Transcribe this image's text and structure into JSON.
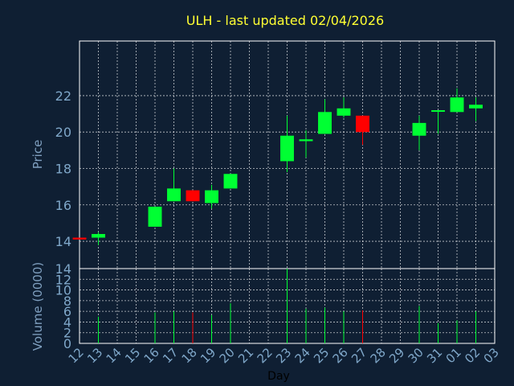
{
  "chart_data": {
    "type": "candlestick",
    "title": "ULH - last updated 02/04/2026",
    "xlabel": "Day",
    "price_panel": {
      "ylabel": "Price",
      "ylim": [
        12.5,
        25
      ],
      "yticks": [
        14,
        16,
        18,
        20,
        22
      ]
    },
    "volume_panel": {
      "ylabel": "Volume (0000)",
      "ylim": [
        0,
        14
      ],
      "yticks": [
        0,
        2,
        4,
        6,
        8,
        10,
        12,
        14
      ]
    },
    "x_ticks": [
      "12",
      "13",
      "14",
      "15",
      "16",
      "17",
      "18",
      "19",
      "20",
      "21",
      "22",
      "23",
      "24",
      "25",
      "26",
      "27",
      "28",
      "29",
      "30",
      "31",
      "01",
      "02",
      "03"
    ],
    "grid": true,
    "colors": {
      "background": "#0f1f33",
      "title": "#ffff33",
      "axis_label": "#7f9fbf",
      "tick_label": "#7fa7c9",
      "grid": "#ffffff",
      "up": "#00ff33",
      "down": "#ff0000"
    },
    "candles": [
      {
        "day": "12",
        "open": 14.2,
        "high": 14.2,
        "low": 14.1,
        "close": 14.1,
        "volume": 0
      },
      {
        "day": "13",
        "open": 14.2,
        "high": 14.5,
        "low": 13.8,
        "close": 14.4,
        "volume": 5.0
      },
      {
        "day": "16",
        "open": 14.8,
        "high": 15.9,
        "low": 14.8,
        "close": 15.9,
        "volume": 5.8
      },
      {
        "day": "17",
        "open": 16.2,
        "high": 18.0,
        "low": 16.2,
        "close": 16.9,
        "volume": 6.0
      },
      {
        "day": "18",
        "open": 16.8,
        "high": 16.8,
        "low": 16.2,
        "close": 16.2,
        "volume": 5.8
      },
      {
        "day": "19",
        "open": 16.1,
        "high": 17.1,
        "low": 15.8,
        "close": 16.8,
        "volume": 5.3
      },
      {
        "day": "20",
        "open": 16.9,
        "high": 17.7,
        "low": 16.9,
        "close": 17.7,
        "volume": 7.5
      },
      {
        "day": "23",
        "open": 18.4,
        "high": 20.9,
        "low": 17.8,
        "close": 19.8,
        "volume": 14.0
      },
      {
        "day": "24",
        "open": 19.5,
        "high": 20.1,
        "low": 18.6,
        "close": 19.6,
        "volume": 6.5
      },
      {
        "day": "25",
        "open": 19.9,
        "high": 21.8,
        "low": 19.9,
        "close": 21.1,
        "volume": 6.7
      },
      {
        "day": "26",
        "open": 20.9,
        "high": 21.9,
        "low": 20.8,
        "close": 21.3,
        "volume": 6.0
      },
      {
        "day": "27",
        "open": 20.9,
        "high": 20.9,
        "low": 19.3,
        "close": 20.0,
        "volume": 6.2
      },
      {
        "day": "30",
        "open": 19.8,
        "high": 20.9,
        "low": 19.0,
        "close": 20.5,
        "volume": 7.0
      },
      {
        "day": "31",
        "open": 21.2,
        "high": 21.2,
        "low": 19.9,
        "close": 21.2,
        "volume": 3.8
      },
      {
        "day": "01",
        "open": 21.1,
        "high": 22.4,
        "low": 21.1,
        "close": 21.9,
        "volume": 4.3
      },
      {
        "day": "02",
        "open": 21.3,
        "high": 21.9,
        "low": 20.6,
        "close": 21.5,
        "volume": 6.0
      }
    ]
  }
}
